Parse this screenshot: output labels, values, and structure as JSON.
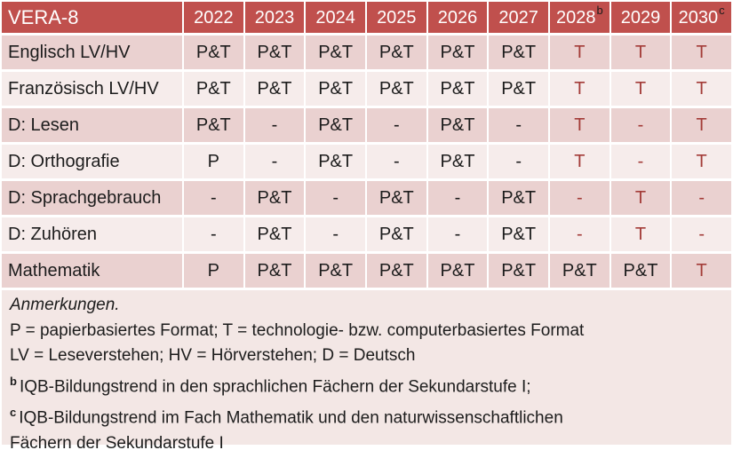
{
  "colors": {
    "header_bg": "#C0504D",
    "header_text": "#FFFFFF",
    "band_dark": "#EAD1D0",
    "band_light": "#F6ECEB",
    "notes_bg": "#F3E7E5",
    "accent_red": "#A33C38",
    "text": "#1C1C1C"
  },
  "table": {
    "title": "VERA-8",
    "years": [
      {
        "label": "2022",
        "sup": ""
      },
      {
        "label": "2023",
        "sup": ""
      },
      {
        "label": "2024",
        "sup": ""
      },
      {
        "label": "2025",
        "sup": ""
      },
      {
        "label": "2026",
        "sup": ""
      },
      {
        "label": "2027",
        "sup": ""
      },
      {
        "label": "2028",
        "sup": "b"
      },
      {
        "label": "2029",
        "sup": ""
      },
      {
        "label": "2030",
        "sup": "c"
      }
    ],
    "rows": [
      {
        "label": "Englisch LV/HV",
        "cells": [
          {
            "t": "P&T",
            "red": false
          },
          {
            "t": "P&T",
            "red": false
          },
          {
            "t": "P&T",
            "red": false
          },
          {
            "t": "P&T",
            "red": false
          },
          {
            "t": "P&T",
            "red": false
          },
          {
            "t": "P&T",
            "red": false
          },
          {
            "t": "T",
            "red": true
          },
          {
            "t": "T",
            "red": true
          },
          {
            "t": "T",
            "red": true
          }
        ]
      },
      {
        "label": "Französisch LV/HV",
        "cells": [
          {
            "t": "P&T",
            "red": false
          },
          {
            "t": "P&T",
            "red": false
          },
          {
            "t": "P&T",
            "red": false
          },
          {
            "t": "P&T",
            "red": false
          },
          {
            "t": "P&T",
            "red": false
          },
          {
            "t": "P&T",
            "red": false
          },
          {
            "t": "T",
            "red": true
          },
          {
            "t": "T",
            "red": true
          },
          {
            "t": "T",
            "red": true
          }
        ]
      },
      {
        "label": "D: Lesen",
        "cells": [
          {
            "t": "P&T",
            "red": false
          },
          {
            "t": "-",
            "red": false
          },
          {
            "t": "P&T",
            "red": false
          },
          {
            "t": "-",
            "red": false
          },
          {
            "t": "P&T",
            "red": false
          },
          {
            "t": "-",
            "red": false
          },
          {
            "t": "T",
            "red": true
          },
          {
            "t": "-",
            "red": true
          },
          {
            "t": "T",
            "red": true
          }
        ]
      },
      {
        "label": "D: Orthografie",
        "cells": [
          {
            "t": "P",
            "red": false
          },
          {
            "t": "-",
            "red": false
          },
          {
            "t": "P&T",
            "red": false
          },
          {
            "t": "-",
            "red": false
          },
          {
            "t": "P&T",
            "red": false
          },
          {
            "t": "-",
            "red": false
          },
          {
            "t": "T",
            "red": true
          },
          {
            "t": "-",
            "red": true
          },
          {
            "t": "T",
            "red": true
          }
        ]
      },
      {
        "label": "D: Sprachgebrauch",
        "cells": [
          {
            "t": "-",
            "red": false
          },
          {
            "t": "P&T",
            "red": false
          },
          {
            "t": "-",
            "red": false
          },
          {
            "t": "P&T",
            "red": false
          },
          {
            "t": "-",
            "red": false
          },
          {
            "t": "P&T",
            "red": false
          },
          {
            "t": "-",
            "red": true
          },
          {
            "t": "T",
            "red": true
          },
          {
            "t": "-",
            "red": true
          }
        ]
      },
      {
        "label": "D: Zuhören",
        "cells": [
          {
            "t": "-",
            "red": false
          },
          {
            "t": "P&T",
            "red": false
          },
          {
            "t": "-",
            "red": false
          },
          {
            "t": "P&T",
            "red": false
          },
          {
            "t": "-",
            "red": false
          },
          {
            "t": "P&T",
            "red": false
          },
          {
            "t": "-",
            "red": true
          },
          {
            "t": "T",
            "red": true
          },
          {
            "t": "-",
            "red": true
          }
        ]
      },
      {
        "label": "Mathematik",
        "cells": [
          {
            "t": "P",
            "red": false
          },
          {
            "t": "P&T",
            "red": false
          },
          {
            "t": "P&T",
            "red": false
          },
          {
            "t": "P&T",
            "red": false
          },
          {
            "t": "P&T",
            "red": false
          },
          {
            "t": "P&T",
            "red": false
          },
          {
            "t": "P&T",
            "red": false
          },
          {
            "t": "P&T",
            "red": false
          },
          {
            "t": "T",
            "red": true
          }
        ]
      }
    ]
  },
  "notes": {
    "heading": "Anmerkungen.",
    "formats_line": "P = papierbasiertes Format; T = technologie- bzw. computerbasiertes Format",
    "abbrev_line": "LV = Leseverstehen; HV = Hörverstehen; D = Deutsch",
    "note_b": {
      "sup": "b",
      "text": "IQB-Bildungstrend in den sprachlichen Fächern der Sekundarstufe I;"
    },
    "note_c": {
      "sup": "c",
      "line1": "IQB-Bildungstrend im Fach Mathematik und den naturwissenschaftlichen",
      "line2": "Fächern der Sekundarstufe I"
    }
  }
}
